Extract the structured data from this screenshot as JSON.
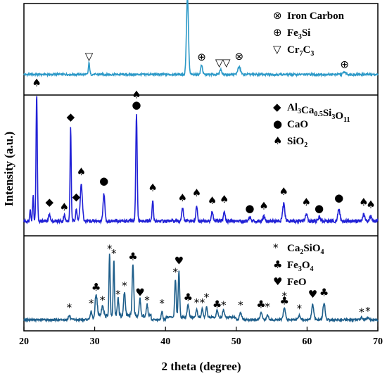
{
  "chart_data": {
    "type": "line",
    "xlabel": "2 theta (degree)",
    "ylabel": "Intensity (a.u.)",
    "xlim": [
      20,
      70
    ],
    "xticks": [
      "20",
      "30",
      "40",
      "50",
      "60",
      "70"
    ],
    "grid": false,
    "panels": [
      {
        "name": "top",
        "color": "#2e9ac8",
        "baseline": 0.2,
        "peaks": [
          {
            "x": 29.2,
            "h": 0.14,
            "w": 0.18
          },
          {
            "x": 43.1,
            "h": 0.95,
            "w": 0.28
          },
          {
            "x": 45.1,
            "h": 0.12,
            "w": 0.25
          },
          {
            "x": 47.8,
            "h": 0.06,
            "w": 0.3
          },
          {
            "x": 50.4,
            "h": 0.09,
            "w": 0.4
          },
          {
            "x": 65.3,
            "h": 0.03,
            "w": 0.4
          }
        ],
        "markers": [
          {
            "x": 29.2,
            "y": 0.38,
            "symbol": "▽"
          },
          {
            "x": 43.1,
            "y": 1.2,
            "symbol": "⊗"
          },
          {
            "x": 45.1,
            "y": 0.37,
            "symbol": "⊕"
          },
          {
            "x": 47.6,
            "y": 0.3,
            "symbol": "▽"
          },
          {
            "x": 48.6,
            "y": 0.3,
            "symbol": "▽"
          },
          {
            "x": 50.4,
            "y": 0.38,
            "symbol": "⊗"
          },
          {
            "x": 65.3,
            "y": 0.28,
            "symbol": "⊕"
          }
        ],
        "legend": [
          {
            "symbol": "⊗",
            "text": "Iron Carbon"
          },
          {
            "symbol": "⊕",
            "label": "Fe",
            "sub1": "3",
            "rest": "Si"
          },
          {
            "symbol": "▽",
            "label": "Cr",
            "sub1": "7",
            "mid": "C",
            "sub2": "3"
          }
        ]
      },
      {
        "name": "middle",
        "color": "#2121d6",
        "baseline": 0.08,
        "peaks": [
          {
            "x": 21.8,
            "h": 0.97,
            "w": 0.18
          },
          {
            "x": 21.3,
            "h": 0.2,
            "w": 0.15
          },
          {
            "x": 20.9,
            "h": 0.1,
            "w": 0.15
          },
          {
            "x": 23.6,
            "h": 0.06,
            "w": 0.2
          },
          {
            "x": 25.7,
            "h": 0.05,
            "w": 0.2
          },
          {
            "x": 26.6,
            "h": 0.72,
            "w": 0.16
          },
          {
            "x": 27.4,
            "h": 0.1,
            "w": 0.2
          },
          {
            "x": 28.1,
            "h": 0.28,
            "w": 0.3
          },
          {
            "x": 31.3,
            "h": 0.21,
            "w": 0.25
          },
          {
            "x": 35.9,
            "h": 0.82,
            "w": 0.2
          },
          {
            "x": 38.2,
            "h": 0.16,
            "w": 0.18
          },
          {
            "x": 42.4,
            "h": 0.1,
            "w": 0.25
          },
          {
            "x": 44.4,
            "h": 0.12,
            "w": 0.2
          },
          {
            "x": 46.6,
            "h": 0.07,
            "w": 0.25
          },
          {
            "x": 48.3,
            "h": 0.08,
            "w": 0.25
          },
          {
            "x": 51.9,
            "h": 0.03,
            "w": 0.3
          },
          {
            "x": 53.9,
            "h": 0.04,
            "w": 0.3
          },
          {
            "x": 56.7,
            "h": 0.13,
            "w": 0.3
          },
          {
            "x": 59.9,
            "h": 0.06,
            "w": 0.3
          },
          {
            "x": 61.7,
            "h": 0.03,
            "w": 0.3
          },
          {
            "x": 64.5,
            "h": 0.09,
            "w": 0.3
          },
          {
            "x": 68.0,
            "h": 0.05,
            "w": 0.3
          },
          {
            "x": 69.0,
            "h": 0.04,
            "w": 0.3
          }
        ],
        "markers": [
          {
            "x": 21.8,
            "y": 1.11,
            "symbol": "♠"
          },
          {
            "x": 23.6,
            "y": 0.2,
            "symbol": "◆"
          },
          {
            "x": 25.7,
            "y": 0.16,
            "symbol": "♠"
          },
          {
            "x": 26.6,
            "y": 0.85,
            "symbol": "◆"
          },
          {
            "x": 27.4,
            "y": 0.24,
            "symbol": "◆"
          },
          {
            "x": 28.1,
            "y": 0.43,
            "symbol": "♠"
          },
          {
            "x": 31.3,
            "y": 0.36,
            "symbol": "●"
          },
          {
            "x": 35.9,
            "y": 1.02,
            "symbol": "♠"
          },
          {
            "x": 35.9,
            "y": 0.94,
            "symbol": "●"
          },
          {
            "x": 38.2,
            "y": 0.31,
            "symbol": "♠"
          },
          {
            "x": 42.4,
            "y": 0.23,
            "symbol": "♠"
          },
          {
            "x": 44.4,
            "y": 0.27,
            "symbol": "♠"
          },
          {
            "x": 46.6,
            "y": 0.21,
            "symbol": "♠"
          },
          {
            "x": 48.3,
            "y": 0.22,
            "symbol": "♠"
          },
          {
            "x": 51.9,
            "y": 0.15,
            "symbol": "●"
          },
          {
            "x": 53.9,
            "y": 0.17,
            "symbol": "♠"
          },
          {
            "x": 56.7,
            "y": 0.28,
            "symbol": "♠"
          },
          {
            "x": 59.9,
            "y": 0.2,
            "symbol": "♠"
          },
          {
            "x": 61.7,
            "y": 0.15,
            "symbol": "●"
          },
          {
            "x": 64.5,
            "y": 0.23,
            "symbol": "●"
          },
          {
            "x": 68.0,
            "y": 0.2,
            "symbol": "♠"
          },
          {
            "x": 69.0,
            "y": 0.18,
            "symbol": "♠"
          }
        ],
        "legend": [
          {
            "symbol": "◆",
            "label": "Al",
            "parts": [
              [
                "Al",
                "3"
              ],
              [
                "Ca",
                "0.5"
              ],
              [
                "Si",
                "3"
              ],
              [
                "O",
                "11"
              ]
            ]
          },
          {
            "symbol": "●",
            "text": "CaO"
          },
          {
            "symbol": "♠",
            "label": "SiO",
            "sub1": "2"
          }
        ]
      },
      {
        "name": "bottom",
        "color": "#1f5f8b",
        "baseline": 0.08,
        "peaks": [
          {
            "x": 26.4,
            "h": 0.05,
            "w": 0.25
          },
          {
            "x": 29.5,
            "h": 0.1,
            "w": 0.25
          },
          {
            "x": 30.2,
            "h": 0.25,
            "w": 0.3
          },
          {
            "x": 31.1,
            "h": 0.12,
            "w": 0.25
          },
          {
            "x": 32.1,
            "h": 0.72,
            "w": 0.17
          },
          {
            "x": 32.7,
            "h": 0.66,
            "w": 0.17
          },
          {
            "x": 33.3,
            "h": 0.2,
            "w": 0.2
          },
          {
            "x": 34.2,
            "h": 0.28,
            "w": 0.25
          },
          {
            "x": 35.4,
            "h": 0.6,
            "w": 0.22
          },
          {
            "x": 36.4,
            "h": 0.2,
            "w": 0.2
          },
          {
            "x": 37.4,
            "h": 0.13,
            "w": 0.2
          },
          {
            "x": 39.5,
            "h": 0.1,
            "w": 0.2
          },
          {
            "x": 41.4,
            "h": 0.45,
            "w": 0.2
          },
          {
            "x": 41.9,
            "h": 0.55,
            "w": 0.2
          },
          {
            "x": 43.2,
            "h": 0.15,
            "w": 0.25
          },
          {
            "x": 44.4,
            "h": 0.1,
            "w": 0.2
          },
          {
            "x": 45.2,
            "h": 0.1,
            "w": 0.2
          },
          {
            "x": 45.8,
            "h": 0.13,
            "w": 0.2
          },
          {
            "x": 47.3,
            "h": 0.08,
            "w": 0.25
          },
          {
            "x": 48.2,
            "h": 0.08,
            "w": 0.25
          },
          {
            "x": 50.6,
            "h": 0.08,
            "w": 0.3
          },
          {
            "x": 53.5,
            "h": 0.08,
            "w": 0.3
          },
          {
            "x": 54.4,
            "h": 0.06,
            "w": 0.25
          },
          {
            "x": 56.8,
            "h": 0.14,
            "w": 0.3
          },
          {
            "x": 58.9,
            "h": 0.05,
            "w": 0.3
          },
          {
            "x": 60.8,
            "h": 0.18,
            "w": 0.3
          },
          {
            "x": 62.4,
            "h": 0.2,
            "w": 0.3
          },
          {
            "x": 67.7,
            "h": 0.03,
            "w": 0.3
          },
          {
            "x": 68.6,
            "h": 0.03,
            "w": 0.3
          }
        ],
        "markers": [
          {
            "x": 26.4,
            "y": 0.18,
            "symbol": "*"
          },
          {
            "x": 29.5,
            "y": 0.23,
            "symbol": "*"
          },
          {
            "x": 30.2,
            "y": 0.42,
            "symbol": "♣"
          },
          {
            "x": 31.1,
            "y": 0.27,
            "symbol": "*"
          },
          {
            "x": 32.1,
            "y": 0.87,
            "symbol": "*"
          },
          {
            "x": 32.7,
            "y": 0.82,
            "symbol": "*"
          },
          {
            "x": 33.3,
            "y": 0.34,
            "symbol": "*"
          },
          {
            "x": 34.2,
            "y": 0.44,
            "symbol": "*"
          },
          {
            "x": 35.4,
            "y": 0.78,
            "symbol": "♣"
          },
          {
            "x": 36.4,
            "y": 0.36,
            "symbol": "♥"
          },
          {
            "x": 37.4,
            "y": 0.27,
            "symbol": "*"
          },
          {
            "x": 39.5,
            "y": 0.23,
            "symbol": "*"
          },
          {
            "x": 41.4,
            "y": 0.6,
            "symbol": "*"
          },
          {
            "x": 41.9,
            "y": 0.73,
            "symbol": "♥"
          },
          {
            "x": 43.2,
            "y": 0.3,
            "symbol": "♣"
          },
          {
            "x": 44.4,
            "y": 0.24,
            "symbol": "*"
          },
          {
            "x": 45.2,
            "y": 0.24,
            "symbol": "*"
          },
          {
            "x": 45.8,
            "y": 0.3,
            "symbol": "*"
          },
          {
            "x": 47.3,
            "y": 0.22,
            "symbol": "♣"
          },
          {
            "x": 48.2,
            "y": 0.21,
            "symbol": "*"
          },
          {
            "x": 50.6,
            "y": 0.21,
            "symbol": "*"
          },
          {
            "x": 53.5,
            "y": 0.22,
            "symbol": "♣"
          },
          {
            "x": 54.4,
            "y": 0.19,
            "symbol": "*"
          },
          {
            "x": 56.8,
            "y": 0.32,
            "symbol": "*"
          },
          {
            "x": 56.8,
            "y": 0.26,
            "symbol": "♣"
          },
          {
            "x": 58.9,
            "y": 0.17,
            "symbol": "*"
          },
          {
            "x": 60.8,
            "y": 0.34,
            "symbol": "♥"
          },
          {
            "x": 62.4,
            "y": 0.36,
            "symbol": "♣"
          },
          {
            "x": 67.7,
            "y": 0.13,
            "symbol": "*"
          },
          {
            "x": 68.6,
            "y": 0.14,
            "symbol": "*"
          }
        ],
        "legend": [
          {
            "symbol": "*",
            "label": "Ca",
            "sub1": "2",
            "mid": "SiO",
            "sub2": "4"
          },
          {
            "symbol": "♣",
            "label": "Fe",
            "sub1": "3",
            "mid": "O",
            "sub2": "4"
          },
          {
            "symbol": "♥",
            "text": "FeO"
          }
        ]
      }
    ]
  }
}
